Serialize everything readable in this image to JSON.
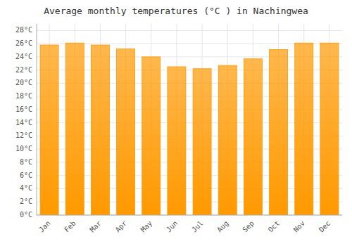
{
  "chart_data": {
    "type": "bar",
    "title": "Average monthly temperatures (°C ) in Nachingwea",
    "categories": [
      "Jan",
      "Feb",
      "Mar",
      "Apr",
      "May",
      "Jun",
      "Jul",
      "Aug",
      "Sep",
      "Oct",
      "Nov",
      "Dec"
    ],
    "values": [
      25.8,
      26.1,
      25.8,
      25.2,
      24.0,
      22.5,
      22.2,
      22.7,
      23.7,
      25.1,
      26.1,
      26.1
    ],
    "color": "#FF9900",
    "ylim": [
      0,
      29
    ],
    "yticks": [
      {
        "value": 0,
        "label": "0°C"
      },
      {
        "value": 2,
        "label": "2°C"
      },
      {
        "value": 4,
        "label": "4°C"
      },
      {
        "value": 6,
        "label": "6°C"
      },
      {
        "value": 8,
        "label": "8°C"
      },
      {
        "value": 10,
        "label": "10°C"
      },
      {
        "value": 12,
        "label": "12°C"
      },
      {
        "value": 14,
        "label": "14°C"
      },
      {
        "value": 16,
        "label": "16°C"
      },
      {
        "value": 18,
        "label": "18°C"
      },
      {
        "value": 20,
        "label": "20°C"
      },
      {
        "value": 22,
        "label": "22°C"
      },
      {
        "value": 24,
        "label": "24°C"
      },
      {
        "value": 26,
        "label": "26°C"
      },
      {
        "value": 28,
        "label": "28°C"
      }
    ],
    "grid": true
  }
}
